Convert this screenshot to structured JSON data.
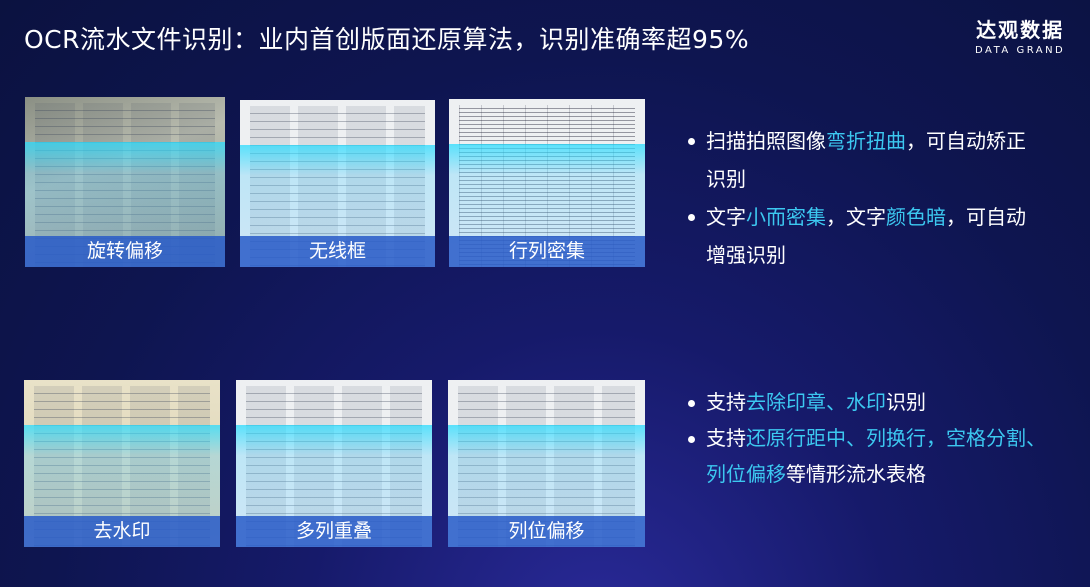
{
  "title": "OCR流水文件识别：业内首创版面还原算法，识别准确率超95%",
  "logo": {
    "cn": "达观数据",
    "en": "DATA GRAND"
  },
  "thumbs": [
    {
      "label": "旋转偏移"
    },
    {
      "label": "无线框"
    },
    {
      "label": "行列密集"
    },
    {
      "label": "去水印"
    },
    {
      "label": "多列重叠"
    },
    {
      "label": "列位偏移"
    }
  ],
  "bullets_top": [
    {
      "parts": [
        "扫描拍照图像",
        "弯折扭曲",
        "，可自动矫正识别"
      ]
    },
    {
      "parts": [
        "文字",
        "小而密集",
        "，文字",
        "颜色暗",
        "，可自动增强识别"
      ]
    }
  ],
  "bullets_bottom": [
    {
      "parts": [
        "支持",
        "去除印章、水印",
        "识别"
      ]
    },
    {
      "parts": [
        "支持",
        "还原行距中、列换行，空格分割、列位偏移",
        "等情形流水表格"
      ]
    }
  ],
  "colors": {
    "highlight": "#3cc8f0",
    "label_bar": "#285ac8"
  }
}
